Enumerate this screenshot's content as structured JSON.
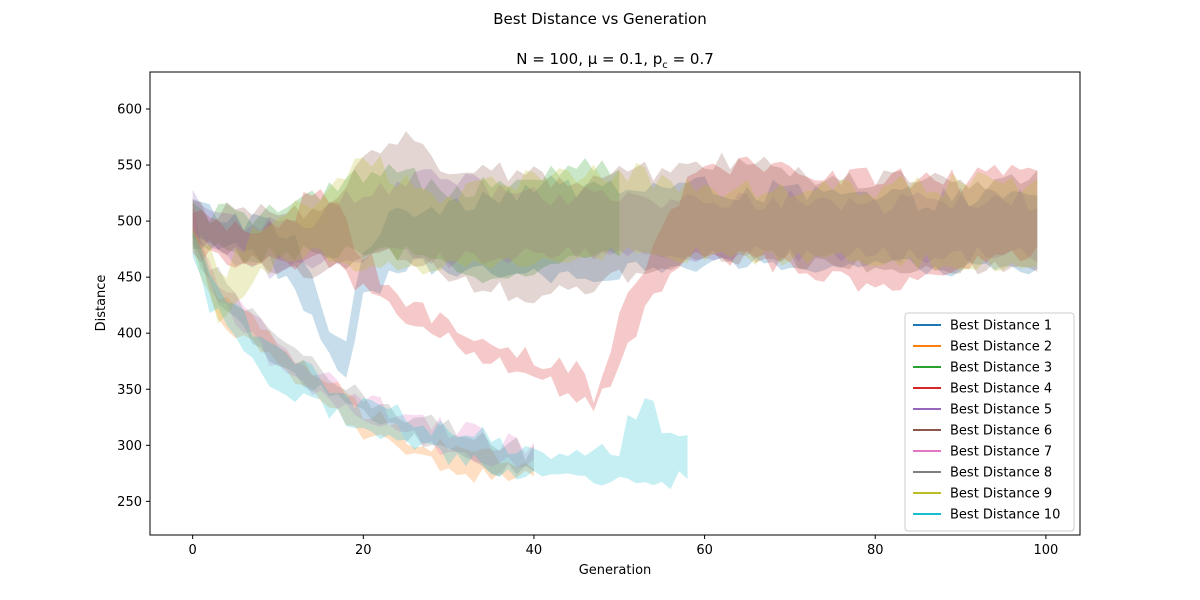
{
  "figure": {
    "suptitle": "Best Distance vs Generation",
    "title": "N = 100, μ = 0.1, p",
    "title_sub": "c",
    "title_tail": " = 0.7"
  },
  "chart_data": {
    "type": "area",
    "xlabel": "Generation",
    "ylabel": "Distance",
    "xlim": [
      -5,
      104
    ],
    "ylim": [
      220,
      633
    ],
    "xticks": [
      0,
      20,
      40,
      60,
      80,
      100
    ],
    "yticks": [
      250,
      300,
      350,
      400,
      450,
      500,
      550,
      600
    ],
    "grid": false,
    "legend_position": "lower-right",
    "band_opacity": 0.25,
    "series": [
      {
        "name": "Best Distance 1",
        "color": "#1f77b4",
        "x_end": 99,
        "lower_anchors": [
          [
            0,
            490
          ],
          [
            3,
            480
          ],
          [
            8,
            470
          ],
          [
            12,
            440
          ],
          [
            16,
            380
          ],
          [
            18,
            360
          ],
          [
            20,
            430
          ],
          [
            25,
            460
          ],
          [
            40,
            450
          ],
          [
            60,
            460
          ],
          [
            80,
            460
          ],
          [
            99,
            455
          ]
        ],
        "upper_anchors": [
          [
            0,
            515
          ],
          [
            3,
            505
          ],
          [
            8,
            500
          ],
          [
            12,
            480
          ],
          [
            16,
            410
          ],
          [
            18,
            390
          ],
          [
            20,
            480
          ],
          [
            25,
            510
          ],
          [
            40,
            530
          ],
          [
            60,
            530
          ],
          [
            80,
            520
          ],
          [
            99,
            520
          ]
        ]
      },
      {
        "name": "Best Distance 2",
        "color": "#ff7f0e",
        "x_end": 40,
        "lower_anchors": [
          [
            0,
            490
          ],
          [
            2,
            430
          ],
          [
            5,
            400
          ],
          [
            10,
            370
          ],
          [
            15,
            340
          ],
          [
            20,
            310
          ],
          [
            25,
            290
          ],
          [
            30,
            280
          ],
          [
            35,
            270
          ],
          [
            40,
            270
          ]
        ],
        "upper_anchors": [
          [
            0,
            515
          ],
          [
            2,
            450
          ],
          [
            5,
            420
          ],
          [
            10,
            390
          ],
          [
            15,
            360
          ],
          [
            20,
            330
          ],
          [
            25,
            310
          ],
          [
            30,
            300
          ],
          [
            35,
            290
          ],
          [
            40,
            285
          ]
        ]
      },
      {
        "name": "Best Distance 3",
        "color": "#2ca02c",
        "x_end": 50,
        "lower_anchors": [
          [
            0,
            480
          ],
          [
            5,
            470
          ],
          [
            10,
            470
          ],
          [
            15,
            470
          ],
          [
            20,
            470
          ],
          [
            25,
            470
          ],
          [
            30,
            460
          ],
          [
            35,
            450
          ],
          [
            40,
            455
          ],
          [
            45,
            465
          ],
          [
            50,
            470
          ]
        ],
        "upper_anchors": [
          [
            0,
            510
          ],
          [
            5,
            505
          ],
          [
            10,
            510
          ],
          [
            15,
            520
          ],
          [
            20,
            540
          ],
          [
            25,
            540
          ],
          [
            30,
            530
          ],
          [
            35,
            535
          ],
          [
            40,
            545
          ],
          [
            45,
            550
          ],
          [
            50,
            550
          ]
        ]
      },
      {
        "name": "Best Distance 4",
        "color": "#d62728",
        "x_end": 99,
        "lower_anchors": [
          [
            0,
            470
          ],
          [
            5,
            465
          ],
          [
            10,
            460
          ],
          [
            15,
            470
          ],
          [
            20,
            440
          ],
          [
            25,
            410
          ],
          [
            30,
            395
          ],
          [
            35,
            375
          ],
          [
            40,
            360
          ],
          [
            45,
            345
          ],
          [
            47,
            335
          ],
          [
            50,
            370
          ],
          [
            53,
            420
          ],
          [
            57,
            460
          ],
          [
            60,
            470
          ],
          [
            70,
            460
          ],
          [
            80,
            440
          ],
          [
            90,
            460
          ],
          [
            99,
            470
          ]
        ],
        "upper_anchors": [
          [
            0,
            500
          ],
          [
            5,
            495
          ],
          [
            10,
            495
          ],
          [
            15,
            530
          ],
          [
            20,
            470
          ],
          [
            25,
            425
          ],
          [
            30,
            405
          ],
          [
            35,
            385
          ],
          [
            40,
            375
          ],
          [
            45,
            365
          ],
          [
            47,
            345
          ],
          [
            50,
            410
          ],
          [
            53,
            460
          ],
          [
            57,
            520
          ],
          [
            60,
            550
          ],
          [
            70,
            545
          ],
          [
            80,
            540
          ],
          [
            90,
            535
          ],
          [
            99,
            545
          ]
        ]
      },
      {
        "name": "Best Distance 5",
        "color": "#9467bd",
        "x_end": 99,
        "lower_anchors": [
          [
            0,
            490
          ],
          [
            5,
            460
          ],
          [
            10,
            455
          ],
          [
            15,
            460
          ],
          [
            20,
            470
          ],
          [
            25,
            470
          ],
          [
            30,
            465
          ],
          [
            40,
            470
          ],
          [
            60,
            470
          ],
          [
            80,
            470
          ],
          [
            99,
            470
          ]
        ],
        "upper_anchors": [
          [
            0,
            520
          ],
          [
            5,
            500
          ],
          [
            10,
            500
          ],
          [
            15,
            505
          ],
          [
            20,
            525
          ],
          [
            25,
            540
          ],
          [
            30,
            535
          ],
          [
            40,
            520
          ],
          [
            60,
            520
          ],
          [
            80,
            515
          ],
          [
            99,
            520
          ]
        ]
      },
      {
        "name": "Best Distance 6",
        "color": "#8c564b",
        "x_end": 99,
        "lower_anchors": [
          [
            0,
            480
          ],
          [
            5,
            470
          ],
          [
            10,
            460
          ],
          [
            15,
            450
          ],
          [
            20,
            470
          ],
          [
            25,
            470
          ],
          [
            30,
            450
          ],
          [
            40,
            430
          ],
          [
            50,
            450
          ],
          [
            60,
            470
          ],
          [
            80,
            460
          ],
          [
            99,
            460
          ]
        ],
        "upper_anchors": [
          [
            0,
            510
          ],
          [
            5,
            505
          ],
          [
            10,
            505
          ],
          [
            15,
            510
          ],
          [
            20,
            560
          ],
          [
            25,
            575
          ],
          [
            30,
            545
          ],
          [
            40,
            540
          ],
          [
            50,
            540
          ],
          [
            60,
            555
          ],
          [
            80,
            535
          ],
          [
            99,
            540
          ]
        ]
      },
      {
        "name": "Best Distance 7",
        "color": "#e377c2",
        "x_end": 40,
        "lower_anchors": [
          [
            0,
            480
          ],
          [
            2,
            440
          ],
          [
            5,
            410
          ],
          [
            10,
            370
          ],
          [
            15,
            345
          ],
          [
            20,
            320
          ],
          [
            25,
            310
          ],
          [
            30,
            295
          ],
          [
            35,
            285
          ],
          [
            40,
            280
          ]
        ],
        "upper_anchors": [
          [
            0,
            505
          ],
          [
            2,
            460
          ],
          [
            5,
            430
          ],
          [
            10,
            390
          ],
          [
            15,
            365
          ],
          [
            20,
            340
          ],
          [
            25,
            330
          ],
          [
            30,
            315
          ],
          [
            35,
            305
          ],
          [
            40,
            295
          ]
        ]
      },
      {
        "name": "Best Distance 8",
        "color": "#7f7f7f",
        "x_end": 40,
        "lower_anchors": [
          [
            0,
            475
          ],
          [
            2,
            440
          ],
          [
            5,
            410
          ],
          [
            10,
            375
          ],
          [
            15,
            350
          ],
          [
            20,
            325
          ],
          [
            25,
            310
          ],
          [
            30,
            295
          ],
          [
            35,
            280
          ],
          [
            40,
            275
          ]
        ],
        "upper_anchors": [
          [
            0,
            500
          ],
          [
            2,
            460
          ],
          [
            5,
            430
          ],
          [
            10,
            395
          ],
          [
            15,
            370
          ],
          [
            20,
            345
          ],
          [
            25,
            330
          ],
          [
            30,
            315
          ],
          [
            35,
            300
          ],
          [
            40,
            295
          ]
        ]
      },
      {
        "name": "Best Distance 9",
        "color": "#bcbd22",
        "x_end": 99,
        "lower_anchors": [
          [
            0,
            475
          ],
          [
            3,
            415
          ],
          [
            6,
            440
          ],
          [
            10,
            465
          ],
          [
            15,
            470
          ],
          [
            20,
            460
          ],
          [
            30,
            460
          ],
          [
            40,
            465
          ],
          [
            50,
            470
          ],
          [
            60,
            470
          ],
          [
            80,
            465
          ],
          [
            99,
            460
          ]
        ],
        "upper_anchors": [
          [
            0,
            505
          ],
          [
            3,
            450
          ],
          [
            6,
            480
          ],
          [
            10,
            500
          ],
          [
            15,
            520
          ],
          [
            20,
            555
          ],
          [
            30,
            520
          ],
          [
            40,
            540
          ],
          [
            50,
            545
          ],
          [
            60,
            530
          ],
          [
            80,
            530
          ],
          [
            99,
            535
          ]
        ]
      },
      {
        "name": "Best Distance 10",
        "color": "#17becf",
        "x_end": 58,
        "lower_anchors": [
          [
            0,
            470
          ],
          [
            2,
            425
          ],
          [
            5,
            395
          ],
          [
            10,
            350
          ],
          [
            15,
            335
          ],
          [
            20,
            315
          ],
          [
            25,
            300
          ],
          [
            30,
            290
          ],
          [
            35,
            280
          ],
          [
            40,
            270
          ],
          [
            45,
            270
          ],
          [
            50,
            270
          ],
          [
            55,
            268
          ],
          [
            58,
            270
          ]
        ],
        "upper_anchors": [
          [
            0,
            500
          ],
          [
            2,
            450
          ],
          [
            5,
            420
          ],
          [
            10,
            385
          ],
          [
            15,
            360
          ],
          [
            20,
            340
          ],
          [
            25,
            325
          ],
          [
            30,
            315
          ],
          [
            35,
            305
          ],
          [
            40,
            295
          ],
          [
            45,
            290
          ],
          [
            50,
            300
          ],
          [
            53,
            350
          ],
          [
            55,
            320
          ],
          [
            58,
            310
          ]
        ]
      }
    ]
  }
}
